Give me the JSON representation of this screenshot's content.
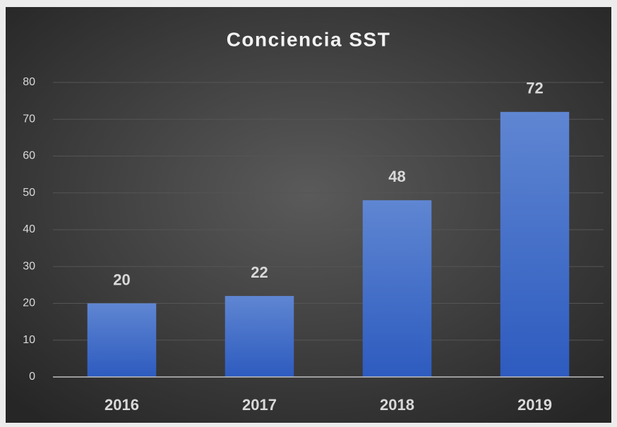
{
  "chart_data": {
    "type": "bar",
    "title": "Conciencia SST",
    "categories": [
      "2016",
      "2017",
      "2018",
      "2019"
    ],
    "values": [
      20,
      22,
      48,
      72
    ],
    "color": "#4472c4",
    "ylim": [
      0,
      80
    ],
    "yticks": [
      0,
      10,
      20,
      30,
      40,
      50,
      60,
      70,
      80
    ],
    "grid": true
  }
}
